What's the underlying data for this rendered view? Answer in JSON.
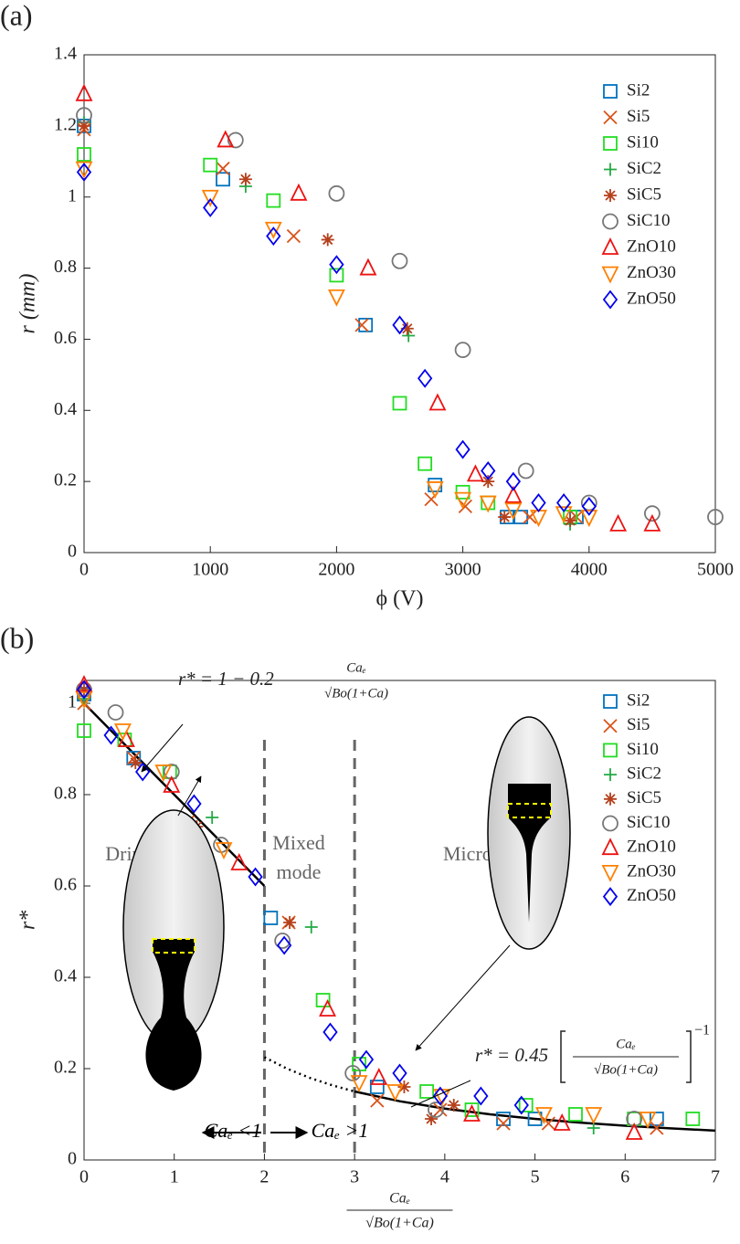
{
  "chart_data": [
    {
      "type": "scatter",
      "panel_label": "(a)",
      "xlabel": "ϕ (V)",
      "ylabel": "r (mm)",
      "xlim": [
        0,
        5000
      ],
      "ylim": [
        0,
        1.4
      ],
      "xticks": [
        0,
        1000,
        2000,
        3000,
        4000,
        5000
      ],
      "yticks": [
        0,
        0.2,
        0.4,
        0.6,
        0.8,
        1,
        1.2,
        1.4
      ],
      "legend": "upper right",
      "series": [
        {
          "name": "Si2",
          "color": "#0072BD",
          "marker": "square",
          "x": [
            0,
            1100,
            2230,
            2780,
            3350,
            3460,
            3900
          ],
          "values": [
            1.2,
            1.05,
            0.64,
            0.19,
            0.1,
            0.1,
            0.1
          ]
        },
        {
          "name": "Si5",
          "color": "#D95319",
          "marker": "x",
          "x": [
            0,
            1100,
            1660,
            2200,
            2750,
            3020,
            3530,
            3900
          ],
          "values": [
            1.19,
            1.08,
            0.89,
            0.64,
            0.15,
            0.13,
            0.1,
            0.1
          ]
        },
        {
          "name": "Si10",
          "color": "#22DD22",
          "marker": "square",
          "x": [
            0,
            1000,
            1500,
            2000,
            2500,
            2700,
            3000,
            3200,
            3850
          ],
          "values": [
            1.12,
            1.09,
            0.99,
            0.78,
            0.42,
            0.25,
            0.17,
            0.14,
            0.1
          ]
        },
        {
          "name": "SiC2",
          "color": "#22AA44",
          "marker": "plus",
          "x": [
            0,
            1280,
            2570,
            3850
          ],
          "values": [
            1.21,
            1.03,
            0.61,
            0.08
          ]
        },
        {
          "name": "SiC5",
          "color": "#B5401B",
          "marker": "star",
          "x": [
            0,
            1280,
            1930,
            2560,
            3200,
            3330,
            3850
          ],
          "values": [
            1.2,
            1.05,
            0.88,
            0.63,
            0.2,
            0.1,
            0.09
          ]
        },
        {
          "name": "SiC10",
          "color": "#777777",
          "marker": "circle",
          "x": [
            0,
            1200,
            2000,
            2500,
            3000,
            3500,
            4000,
            4500,
            5000
          ],
          "values": [
            1.23,
            1.16,
            1.01,
            0.82,
            0.57,
            0.23,
            0.14,
            0.11,
            0.1
          ]
        },
        {
          "name": "ZnO10",
          "color": "#EE1111",
          "marker": "triangle-up",
          "x": [
            0,
            1120,
            1700,
            2250,
            2800,
            3100,
            3400,
            4230,
            4500
          ],
          "values": [
            1.29,
            1.16,
            1.01,
            0.8,
            0.42,
            0.22,
            0.16,
            0.08,
            0.08
          ]
        },
        {
          "name": "ZnO30",
          "color": "#FF8000",
          "marker": "triangle-down",
          "x": [
            0,
            1000,
            1500,
            2000,
            2780,
            3000,
            3200,
            3400,
            3600,
            3800,
            4000
          ],
          "values": [
            1.08,
            1,
            0.91,
            0.72,
            0.18,
            0.15,
            0.14,
            0.12,
            0.1,
            0.11,
            0.1
          ]
        },
        {
          "name": "ZnO50",
          "color": "#0000EE",
          "marker": "diamond",
          "x": [
            0,
            1000,
            1500,
            2000,
            2500,
            2700,
            3000,
            3200,
            3400,
            3600,
            3800,
            4000
          ],
          "values": [
            1.07,
            0.97,
            0.89,
            0.81,
            0.64,
            0.49,
            0.29,
            0.23,
            0.2,
            0.14,
            0.14,
            0.13
          ]
        }
      ]
    },
    {
      "type": "scatter",
      "panel_label": "(b)",
      "xlabel": {
        "num": "Caₑ",
        "den": "√Bo(1+Ca)"
      },
      "ylabel": "r*",
      "xlim": [
        0,
        7
      ],
      "ylim": [
        0,
        1.05
      ],
      "xticks": [
        0,
        1,
        2,
        3,
        4,
        5,
        6,
        7
      ],
      "yticks": [
        0,
        0.2,
        0.4,
        0.6,
        0.8,
        1
      ],
      "legend": "upper right",
      "series": [
        {
          "name": "Si2",
          "color": "#0072BD",
          "marker": "square",
          "x": [
            0,
            0.55,
            2.07,
            3.25,
            4.65,
            5,
            6.35
          ],
          "values": [
            1.02,
            0.88,
            0.53,
            0.16,
            0.09,
            0.09,
            0.09
          ]
        },
        {
          "name": "Si5",
          "color": "#D95319",
          "marker": "x",
          "x": [
            0,
            0.55,
            1.15,
            2.27,
            3.25,
            3.95,
            4.65,
            5.15,
            6.35
          ],
          "values": [
            1,
            0.88,
            0.74,
            0.52,
            0.13,
            0.11,
            0.08,
            0.08,
            0.07
          ]
        },
        {
          "name": "Si10",
          "color": "#22DD22",
          "marker": "square",
          "x": [
            0,
            0.45,
            0.95,
            2.65,
            3.05,
            3.8,
            4.3,
            4.9,
            5.45,
            6.1,
            6.75
          ],
          "values": [
            0.94,
            0.92,
            0.85,
            0.35,
            0.21,
            0.15,
            0.11,
            0.12,
            0.1,
            0.09,
            0.09
          ]
        },
        {
          "name": "SiC2",
          "color": "#22AA44",
          "marker": "plus",
          "x": [
            0,
            1.42,
            2.52,
            5.65
          ],
          "values": [
            1.01,
            0.75,
            0.51,
            0.07
          ]
        },
        {
          "name": "SiC5",
          "color": "#B5401B",
          "marker": "star",
          "x": [
            0,
            0.57,
            1.25,
            2.28,
            3.55,
            3.85,
            4.1
          ],
          "values": [
            1.03,
            0.87,
            0.73,
            0.52,
            0.16,
            0.09,
            0.12
          ]
        },
        {
          "name": "SiC10",
          "color": "#777777",
          "marker": "circle",
          "x": [
            0,
            0.35,
            0.97,
            1.52,
            2.2,
            2.98,
            3.9,
            6.1
          ],
          "values": [
            1.03,
            0.98,
            0.85,
            0.69,
            0.48,
            0.19,
            0.11,
            0.09
          ]
        },
        {
          "name": "ZnO10",
          "color": "#EE1111",
          "marker": "triangle-up",
          "x": [
            0,
            0.47,
            0.97,
            1.72,
            2.7,
            3.27,
            4.3,
            5.3,
            6.1
          ],
          "values": [
            1.04,
            0.92,
            0.82,
            0.65,
            0.33,
            0.18,
            0.1,
            0.08,
            0.06
          ]
        },
        {
          "name": "ZnO30",
          "color": "#FF8000",
          "marker": "triangle-down",
          "x": [
            0,
            0.43,
            0.88,
            1.55,
            3.05,
            3.45,
            3.97,
            5.1,
            5.65,
            6.25
          ],
          "values": [
            1.01,
            0.94,
            0.85,
            0.68,
            0.17,
            0.15,
            0.14,
            0.1,
            0.1,
            0.09
          ]
        },
        {
          "name": "ZnO50",
          "color": "#0000EE",
          "marker": "diamond",
          "x": [
            0,
            0.3,
            0.65,
            1.22,
            1.9,
            2.22,
            2.73,
            3.13,
            3.5,
            3.95,
            4.4,
            4.85
          ],
          "values": [
            1.03,
            0.93,
            0.85,
            0.78,
            0.62,
            0.47,
            0.28,
            0.22,
            0.19,
            0.14,
            0.14,
            0.12
          ]
        }
      ],
      "lines": [
        {
          "style": "solid",
          "x": [
            0,
            2
          ],
          "values": [
            1,
            0.6
          ]
        },
        {
          "style": "dotted",
          "x": [
            2,
            2.25,
            2.5,
            2.75,
            3
          ],
          "values": [
            0.225,
            0.2,
            0.18,
            0.1636,
            0.15
          ]
        },
        {
          "style": "solid",
          "x": [
            3,
            3.5,
            4,
            4.5,
            5,
            5.5,
            6,
            6.5,
            7
          ],
          "values": [
            0.15,
            0.1286,
            0.1125,
            0.1,
            0.09,
            0.0818,
            0.075,
            0.0692,
            0.0643
          ]
        }
      ],
      "vlines": [
        2,
        3
      ],
      "equations": [
        {
          "lhs": "r* = 1 − 0.2",
          "num": "Caₑ",
          "den": "√Bo(1+Ca)"
        },
        {
          "lhs": "r* = 0.45",
          "num": "Caₑ",
          "den": "√Bo(1+Ca)",
          "exponent": "−1"
        }
      ],
      "regions": [
        "Dripping",
        "Mixed",
        "mode",
        "Microdripping"
      ],
      "regime_labels": [
        "Caₑ <1",
        "Caₑ >1"
      ]
    }
  ]
}
